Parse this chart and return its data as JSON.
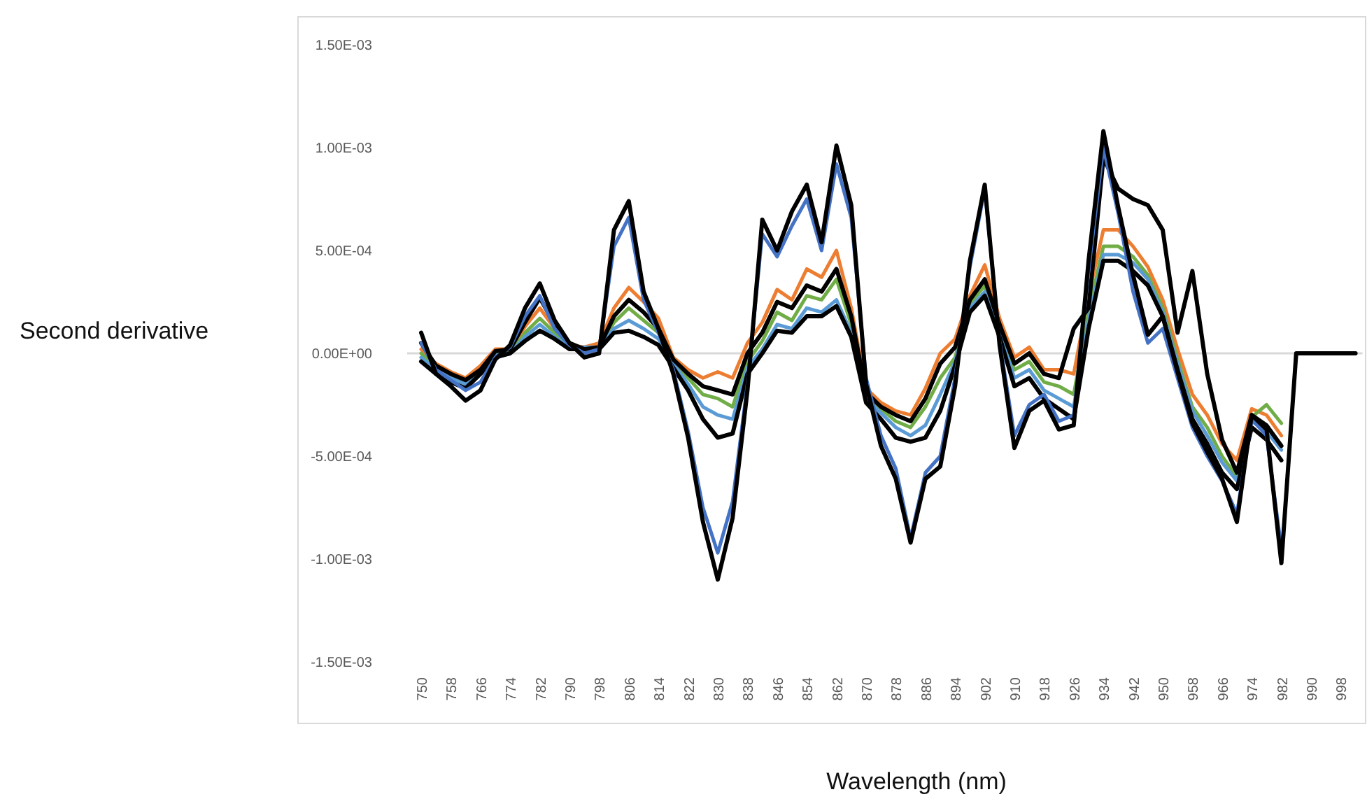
{
  "chart_data": {
    "type": "line",
    "xlabel": "Wavelength (nm)",
    "ylabel": "Second derivative",
    "categories": [
      "750",
      null,
      "758",
      null,
      "766",
      null,
      "774",
      null,
      "782",
      null,
      "790",
      null,
      "798",
      null,
      "806",
      null,
      "814",
      null,
      "822",
      null,
      "830",
      null,
      "838",
      null,
      "846",
      null,
      "854",
      null,
      "862",
      null,
      "870",
      null,
      "878",
      null,
      "886",
      null,
      "894",
      null,
      "902",
      null,
      "910",
      null,
      "918",
      null,
      "926",
      null,
      "934",
      null,
      "942",
      null,
      "950",
      null,
      "958",
      null,
      "966",
      null,
      "974",
      null,
      "982",
      null,
      "990",
      null,
      "998",
      null
    ],
    "ylim": [
      -0.0015,
      0.0015
    ],
    "yticks": [
      {
        "value": 0.0015,
        "label": "1.50E-03"
      },
      {
        "value": 0.001,
        "label": "1.00E-03"
      },
      {
        "value": 0.0005,
        "label": "5.00E-04"
      },
      {
        "value": 0,
        "label": "0.00E+00"
      },
      {
        "value": -0.0005,
        "label": "-5.00E-04"
      },
      {
        "value": -0.001,
        "label": "-1.00E-03"
      },
      {
        "value": -0.0015,
        "label": "-1.50E-03"
      }
    ],
    "series": [
      {
        "color": "#ed7d31",
        "values": [
          2e-05,
          -5e-05,
          -9e-05,
          -0.00012,
          -6e-05,
          2e-05,
          2e-05,
          0.00013,
          0.00022,
          0.00012,
          4e-05,
          3e-05,
          5e-05,
          0.00022,
          0.00032,
          0.00025,
          0.00017,
          -2e-05,
          -8e-05,
          -0.00012,
          -9e-05,
          -0.00012,
          5e-05,
          0.00015,
          0.00031,
          0.00026,
          0.00041,
          0.00037,
          0.0005,
          0.00022,
          -0.00017,
          -0.00024,
          -0.00028,
          -0.0003,
          -0.00017,
          0,
          7e-05,
          0.00028,
          0.00043,
          0.00017,
          -2e-05,
          3e-05,
          -8e-05,
          -8e-05,
          -0.0001,
          0.00028,
          0.0006,
          0.0006,
          0.00052,
          0.00042,
          0.00026,
          2e-05,
          -0.0002,
          -0.0003,
          -0.00044,
          -0.00052,
          -0.00027,
          -0.0003,
          -0.0004,
          null,
          null,
          null,
          null,
          null
        ]
      },
      {
        "color": "#70ad47",
        "values": [
          0,
          -7e-05,
          -0.00011,
          -0.00014,
          -8e-05,
          0,
          0,
          0.0001,
          0.00017,
          0.0001,
          3e-05,
          2e-05,
          3e-05,
          0.00015,
          0.00022,
          0.00016,
          0.0001,
          -4e-05,
          -0.00012,
          -0.0002,
          -0.00022,
          -0.00026,
          -4e-05,
          6e-05,
          0.0002,
          0.00016,
          0.00028,
          0.00026,
          0.00036,
          0.00014,
          -0.0002,
          -0.00027,
          -0.00033,
          -0.00036,
          -0.00026,
          -0.00012,
          -2e-05,
          0.00024,
          0.00033,
          0.00012,
          -8e-05,
          -4e-05,
          -0.00014,
          -0.00016,
          -0.0002,
          0.0002,
          0.00052,
          0.00052,
          0.00047,
          0.00038,
          0.00022,
          -3e-05,
          -0.00026,
          -0.00036,
          -0.0005,
          -0.0006,
          -0.00031,
          -0.00025,
          -0.00034,
          null,
          null,
          null,
          null,
          null
        ]
      },
      {
        "color": "#5b9bd5",
        "values": [
          -2e-05,
          -8e-05,
          -0.00012,
          -0.00015,
          -9e-05,
          -1e-05,
          0,
          8e-05,
          0.00014,
          8e-05,
          3e-05,
          3e-05,
          3e-05,
          0.00012,
          0.00016,
          0.00012,
          7e-05,
          -5e-05,
          -0.00015,
          -0.00026,
          -0.0003,
          -0.00032,
          -7e-05,
          2e-05,
          0.00014,
          0.00012,
          0.00022,
          0.0002,
          0.00026,
          0.0001,
          -0.00022,
          -0.00029,
          -0.00036,
          -0.0004,
          -0.00035,
          -0.0002,
          -4e-05,
          0.00022,
          0.0003,
          0.0001,
          -0.00012,
          -8e-05,
          -0.00018,
          -0.00022,
          -0.00026,
          0.00016,
          0.00048,
          0.00048,
          0.00044,
          0.00036,
          0.0002,
          -5e-05,
          -0.00028,
          -0.0004,
          -0.00053,
          -0.00062,
          -0.00033,
          -0.00038,
          -0.00047,
          null,
          null,
          null,
          null,
          null
        ]
      },
      {
        "color": "#000000",
        "values": [
          -4e-05,
          -0.0001,
          -0.00014,
          -0.00017,
          -0.0001,
          -2e-05,
          0,
          6e-05,
          0.00011,
          7e-05,
          2e-05,
          2e-05,
          2e-05,
          0.0001,
          0.00011,
          8e-05,
          4e-05,
          -7e-05,
          -0.00018,
          -0.00032,
          -0.00041,
          -0.00039,
          -0.0001,
          0,
          0.00011,
          0.0001,
          0.00018,
          0.00018,
          0.00023,
          8e-05,
          -0.00024,
          -0.00032,
          -0.00041,
          -0.00043,
          -0.00041,
          -0.00028,
          -6e-05,
          0.0002,
          0.00028,
          8e-05,
          -0.00016,
          -0.00012,
          -0.00022,
          -0.00027,
          -0.00032,
          0.00012,
          0.00045,
          0.00045,
          0.0004,
          0.00033,
          0.00018,
          -8e-05,
          -0.00032,
          -0.00044,
          -0.00058,
          -0.00066,
          -0.00036,
          -0.00042,
          -0.00052,
          null,
          null,
          null,
          null,
          null
        ]
      },
      {
        "color": "#000000",
        "values": [
          5e-05,
          -6e-05,
          -0.0001,
          -0.00013,
          -8e-05,
          1e-05,
          2e-05,
          0.00015,
          0.00027,
          0.00014,
          5e-05,
          2e-05,
          3e-05,
          0.00018,
          0.00026,
          0.0002,
          0.00012,
          -3e-05,
          -0.0001,
          -0.00016,
          -0.00018,
          -0.0002,
          0,
          0.0001,
          0.00025,
          0.00022,
          0.00033,
          0.0003,
          0.00041,
          0.00018,
          -0.00019,
          -0.00026,
          -0.0003,
          -0.00033,
          -0.00022,
          -5e-05,
          3e-05,
          0.00026,
          0.00036,
          0.00014,
          -5e-05,
          0,
          -0.0001,
          -0.00012,
          0.00012,
          0.00022,
          0.00095,
          0.0008,
          0.00075,
          0.00072,
          0.0006,
          0.0001,
          0.0004,
          -0.0001,
          -0.00042,
          -0.00058,
          -0.0003,
          -0.00035,
          -0.00045,
          null,
          null,
          null,
          null,
          null
        ]
      },
      {
        "color": "#4472c4",
        "values": [
          5e-05,
          -8e-05,
          -0.00013,
          -0.00018,
          -0.00014,
          -2e-05,
          3e-05,
          0.00018,
          0.00028,
          0.00012,
          4e-05,
          0,
          2e-05,
          0.00052,
          0.00066,
          0.00026,
          0.0001,
          -8e-05,
          -0.00038,
          -0.00075,
          -0.00097,
          -0.00072,
          -0.00015,
          0.00058,
          0.00047,
          0.00062,
          0.00075,
          0.0005,
          0.00092,
          0.00066,
          -0.00012,
          -0.0004,
          -0.00056,
          -0.0009,
          -0.00058,
          -0.0005,
          -0.00012,
          0.00042,
          0.0008,
          6e-05,
          -0.0004,
          -0.00025,
          -0.0002,
          -0.00033,
          -0.0003,
          0.0004,
          0.001,
          0.00068,
          0.0003,
          5e-05,
          0.00012,
          -0.00012,
          -0.00036,
          -0.0005,
          -0.00062,
          -0.00078,
          -0.00032,
          -0.0004,
          -0.00095,
          null,
          null,
          null,
          null,
          null
        ]
      },
      {
        "color": "#000000",
        "values": [
          0.0001,
          -0.0001,
          -0.00016,
          -0.00023,
          -0.00018,
          -3e-05,
          4e-05,
          0.00022,
          0.00034,
          0.00016,
          5e-05,
          -2e-05,
          0,
          0.0006,
          0.00074,
          0.0003,
          0.00012,
          -0.0001,
          -0.00041,
          -0.00082,
          -0.0011,
          -0.0008,
          -0.00018,
          0.00065,
          0.0005,
          0.00069,
          0.00082,
          0.00054,
          0.00101,
          0.00072,
          -0.00015,
          -0.00045,
          -0.00061,
          -0.00092,
          -0.00061,
          -0.00055,
          -0.00016,
          0.00045,
          0.00082,
          4e-05,
          -0.00046,
          -0.00028,
          -0.00023,
          -0.00037,
          -0.00035,
          0.00045,
          0.00108,
          0.00071,
          0.00038,
          9e-05,
          0.00018,
          -9e-05,
          -0.00034,
          -0.00048,
          -0.00061,
          -0.00082,
          -0.0003,
          -0.00037,
          -0.00102,
          0,
          0,
          0,
          0,
          0
        ]
      }
    ]
  }
}
